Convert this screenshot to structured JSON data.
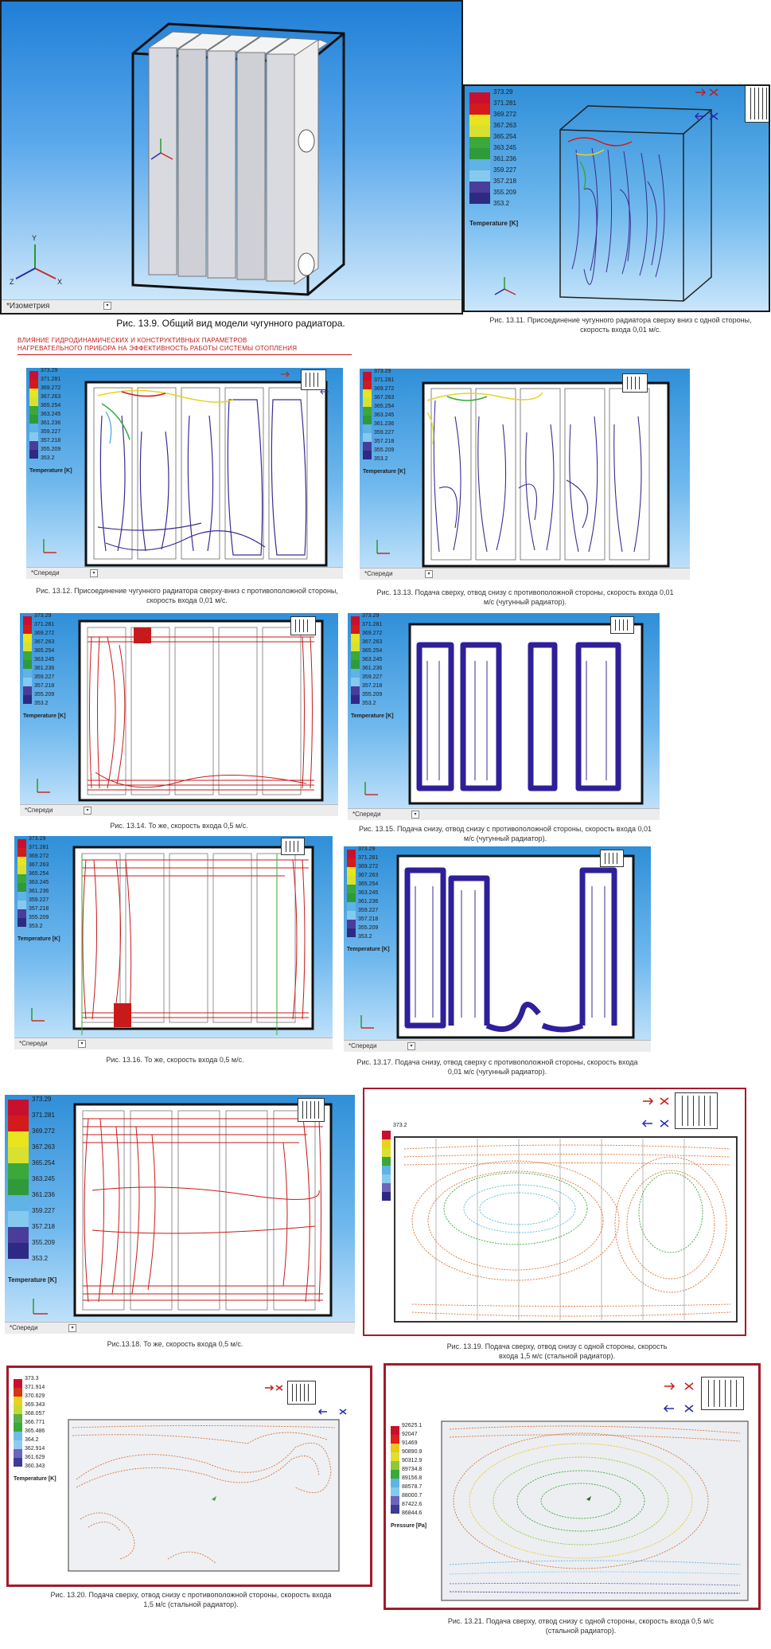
{
  "legend_temperature": {
    "values": [
      "373.29",
      "371.281",
      "369.272",
      "367.263",
      "365.254",
      "363.245",
      "361.236",
      "359.227",
      "357.218",
      "355.209",
      "353.2"
    ],
    "unit": "Temperature [K]",
    "colors": [
      "#c8102e",
      "#d41a1a",
      "#e8e41e",
      "#d8e030",
      "#3aa83a",
      "#2f9a3a",
      "#5fb3e5",
      "#86c9ef",
      "#4a3d9a",
      "#2e2a84"
    ]
  },
  "legend_temperature_steel": {
    "values": [
      "373.3",
      "371.914",
      "370.629",
      "369.343",
      "368.057",
      "366.771",
      "365.486",
      "364.2",
      "362.914",
      "361.629",
      "360.343"
    ],
    "unit": "Temperature [K]",
    "colors": [
      "#c8102e",
      "#d8321a",
      "#e8d21e",
      "#c8d832",
      "#5ab04a",
      "#3aa83a",
      "#6fbde8",
      "#8fcaf0",
      "#6c65b8",
      "#3e3a96"
    ]
  },
  "legend_temperature_tiny": {
    "values": [
      "373.2"
    ],
    "colors": [
      "#c8102e",
      "#e8d21e",
      "#d8e030",
      "#3aa83a",
      "#5fb3e5",
      "#86c9ef",
      "#6c65b8",
      "#2e2a84"
    ]
  },
  "legend_pressure": {
    "values": [
      "92625.1",
      "92047",
      "91469",
      "90890.9",
      "90312.9",
      "89734.8",
      "89156.8",
      "88578.7",
      "88000.7",
      "87422.6",
      "86844.6"
    ],
    "unit": "Pressure [Pa]",
    "colors": [
      "#c8102e",
      "#e0201a",
      "#e8c81e",
      "#e0e032",
      "#8fc83a",
      "#3aa83a",
      "#5fb3e5",
      "#86c9ef",
      "#6c65b8",
      "#3e3a96"
    ]
  },
  "view_isometric": "*Изометрия",
  "view_front": "*Спереди",
  "heading_red": "ВЛИЯНИЕ ГИДРОДИНАМИЧЕСКИХ И КОНСТРУКТИВНЫХ ПАРАМЕТРОВ НАГРЕВАТЕЛЬНОГО ПРИБОРА НА ЭФФЕКТИВНОСТЬ РАБОТЫ СИСТЕМЫ ОТОПЛЕНИЯ",
  "captions": {
    "fig_13_9": "Рис. 13.9. Общий вид модели чугунного радиатора.",
    "fig_13_11": "Рис. 13.11. Присоединение чугунного радиатора сверху вниз с одной стороны, скорость входа 0,01 м/с.",
    "fig_13_12": "Рис. 13.12. Присоединение чугунного радиатора сверху-вниз с противоположной стороны, скорость входа 0,01 м/с.",
    "fig_13_13": "Рис. 13.13. Подача сверху, отвод снизу с противоположной стороны, скорость входа 0,01 м/с (чугунный радиатор).",
    "fig_13_14": "Рис. 13.14. То же, скорость входа 0,5 м/с.",
    "fig_13_15": "Рис. 13.15. Подача снизу, отвод снизу с противоположной стороны, скорость входа 0,01 м/с (чугунный радиатор).",
    "fig_13_16": "Рис. 13.16. То же, скорость входа 0,5 м/с.",
    "fig_13_17": "Рис. 13.17. Подача снизу, отвод сверху с противоположной стороны, скорость входа 0,01 м/с (чугунный радиатор).",
    "fig_13_18": "Рис.13.18. То же, скорость входа 0,5 м/с.",
    "fig_13_19": "Рис. 13.19. Подача сверху, отвод снизу с одной стороны, скорость входа 1,5 м/с (стальной радиатор).",
    "fig_13_20": "Рис. 13.20. Подача сверху, отвод снизу с противоположной стороны, скорость входа 1,5 м/с (стальной радиатор).",
    "fig_13_21": "Рис. 13.21. Подача сверху, отвод снизу с одной стороны, скорость входа 0,5 м/с (стальной радиатор)."
  }
}
